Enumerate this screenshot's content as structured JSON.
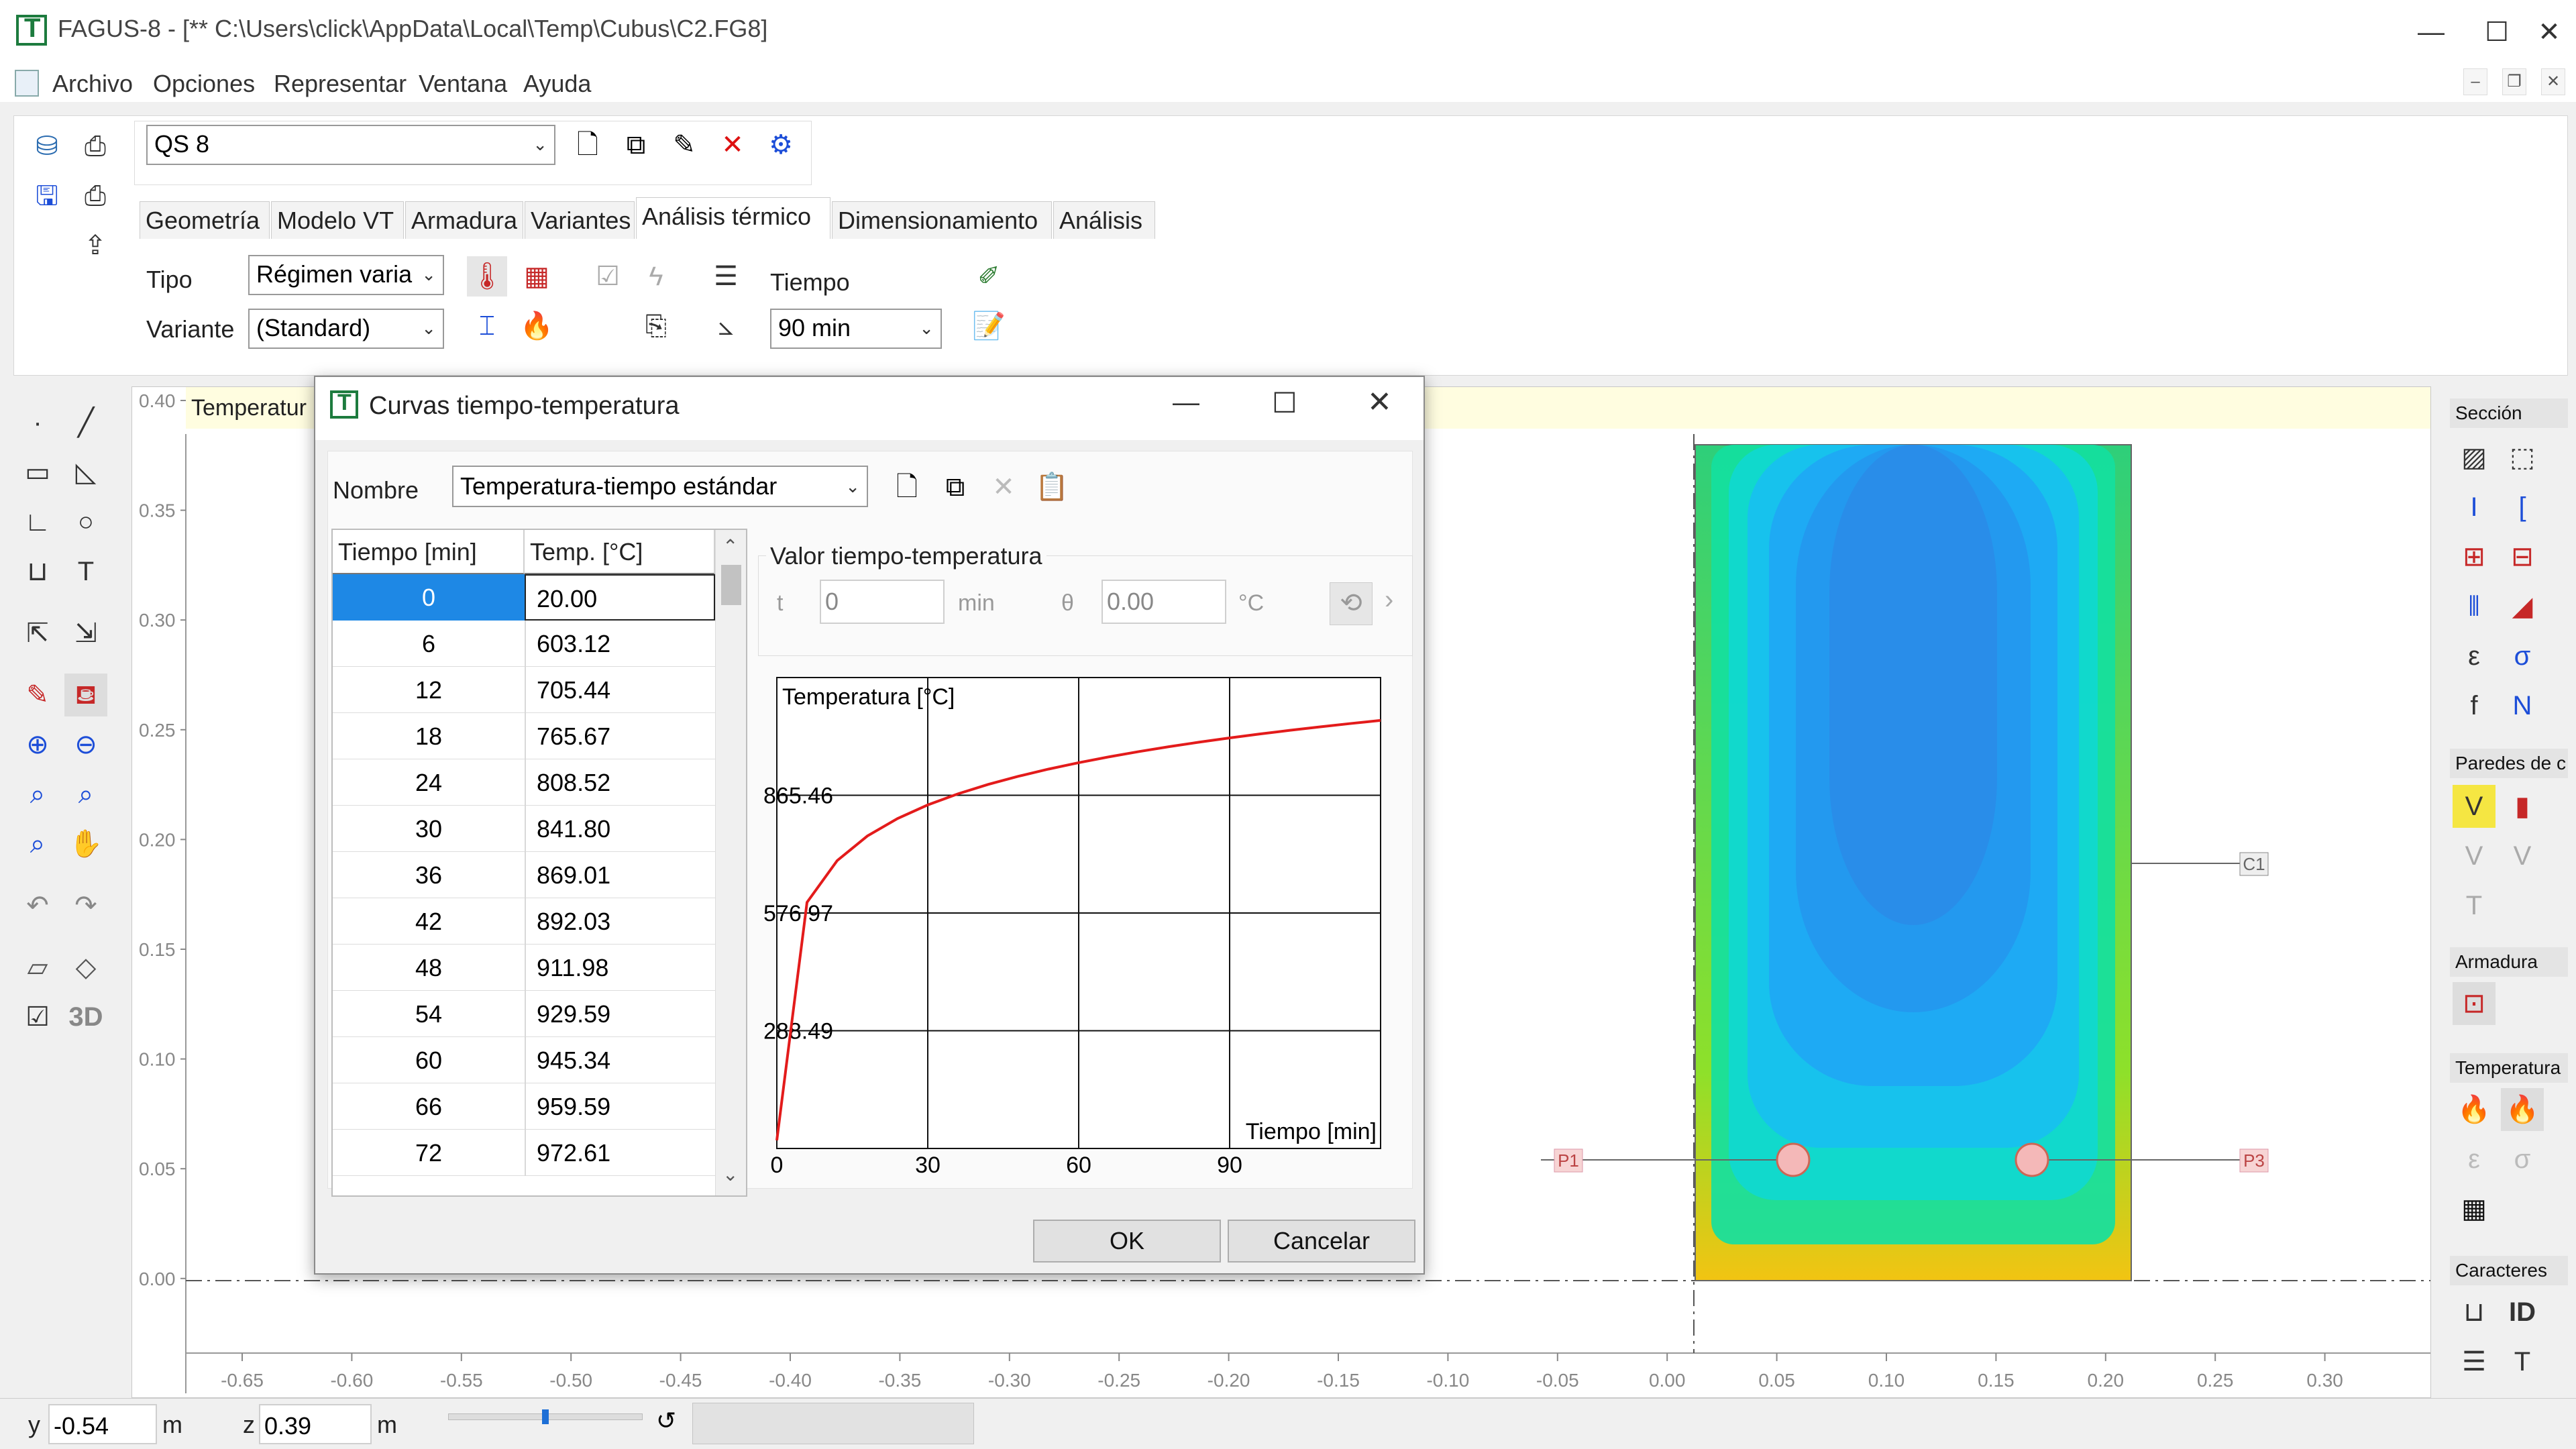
{
  "window": {
    "title": "FAGUS-8 - [** C:\\Users\\click\\AppData\\Local\\Temp\\Cubus\\C2.FG8]",
    "minimize": "—",
    "maximize": "☐",
    "close": "✕"
  },
  "menu": [
    "Archivo",
    "Opciones",
    "Representar",
    "Ventana",
    "Ayuda"
  ],
  "section_select": "QS 8",
  "tabs": [
    "Geometría",
    "Modelo VT",
    "Armadura",
    "Variantes",
    "Análisis térmico",
    "Dimensionamiento",
    "Análisis"
  ],
  "active_tab": "Análisis térmico",
  "ribbon": {
    "tipo_label": "Tipo",
    "tipo_value": "Régimen varia",
    "variante_label": "Variante",
    "variante_value": "(Standard)",
    "tiempo_label": "Tiempo",
    "tiempo_value": "90 min"
  },
  "canvas": {
    "banner": "Temperatur",
    "y_ticks": [
      "0.40",
      "0.35",
      "0.30",
      "0.25",
      "0.20",
      "0.15",
      "0.10",
      "0.05",
      "0.00"
    ],
    "x_ticks": [
      "-0.65",
      "-0.60",
      "-0.55",
      "-0.50",
      "-0.45",
      "-0.40",
      "-0.35",
      "-0.30",
      "-0.25",
      "-0.20",
      "-0.15",
      "-0.10",
      "-0.05",
      "0.00",
      "0.05",
      "0.10",
      "0.15",
      "0.20",
      "0.25",
      "0.30"
    ],
    "points": [
      "C1",
      "P1",
      "P3"
    ]
  },
  "right_panel": {
    "seccion": "Sección",
    "paredes": "Paredes de c",
    "armadura": "Armadura",
    "temperatura": "Temperatura",
    "caracteres": "Caracteres"
  },
  "status": {
    "y_label": "y",
    "y_value": "-0.54",
    "y_unit": "m",
    "z_label": "z",
    "z_value": "0.39",
    "z_unit": "m"
  },
  "dialog": {
    "title": "Curvas tiempo-temperatura",
    "nombre_label": "Nombre",
    "nombre_value": "Temperatura-tiempo estándar",
    "table_headers": [
      "Tiempo [min]",
      "Temp. [°C]"
    ],
    "rows": [
      {
        "t": "0",
        "v": "20.00"
      },
      {
        "t": "6",
        "v": "603.12"
      },
      {
        "t": "12",
        "v": "705.44"
      },
      {
        "t": "18",
        "v": "765.67"
      },
      {
        "t": "24",
        "v": "808.52"
      },
      {
        "t": "30",
        "v": "841.80"
      },
      {
        "t": "36",
        "v": "869.01"
      },
      {
        "t": "42",
        "v": "892.03"
      },
      {
        "t": "48",
        "v": "911.98"
      },
      {
        "t": "54",
        "v": "929.59"
      },
      {
        "t": "60",
        "v": "945.34"
      },
      {
        "t": "66",
        "v": "959.59"
      },
      {
        "t": "72",
        "v": "972.61"
      }
    ],
    "group_label": "Valor tiempo-temperatura",
    "t_label": "t",
    "t_value": "0",
    "t_unit": "min",
    "theta_label": "θ",
    "theta_value": "0.00",
    "theta_unit": "°C",
    "ok": "OK",
    "cancel": "Cancelar"
  },
  "chart_data": {
    "type": "line",
    "ylabel": "Temperatura [°C]",
    "xlabel": "Tiempo [min]",
    "y_ticks": [
      288.49,
      576.97,
      865.46
    ],
    "x_ticks": [
      0,
      30,
      60,
      90
    ],
    "xlim": [
      0,
      120
    ],
    "ylim": [
      0,
      1153.94
    ],
    "series": [
      {
        "color": "#e31b1b",
        "x": [
          0,
          6,
          12,
          18,
          24,
          30,
          36,
          42,
          48,
          54,
          60,
          66,
          72,
          78,
          84,
          90,
          96,
          102,
          108,
          114,
          120
        ],
        "y": [
          20.0,
          603.12,
          705.44,
          765.67,
          808.52,
          841.8,
          869.01,
          892.03,
          911.98,
          929.59,
          945.34,
          959.59,
          972.61,
          984.58,
          995.66,
          1005.96,
          1015.59,
          1024.64,
          1033.17,
          1041.24,
          1048.89
        ]
      }
    ]
  }
}
